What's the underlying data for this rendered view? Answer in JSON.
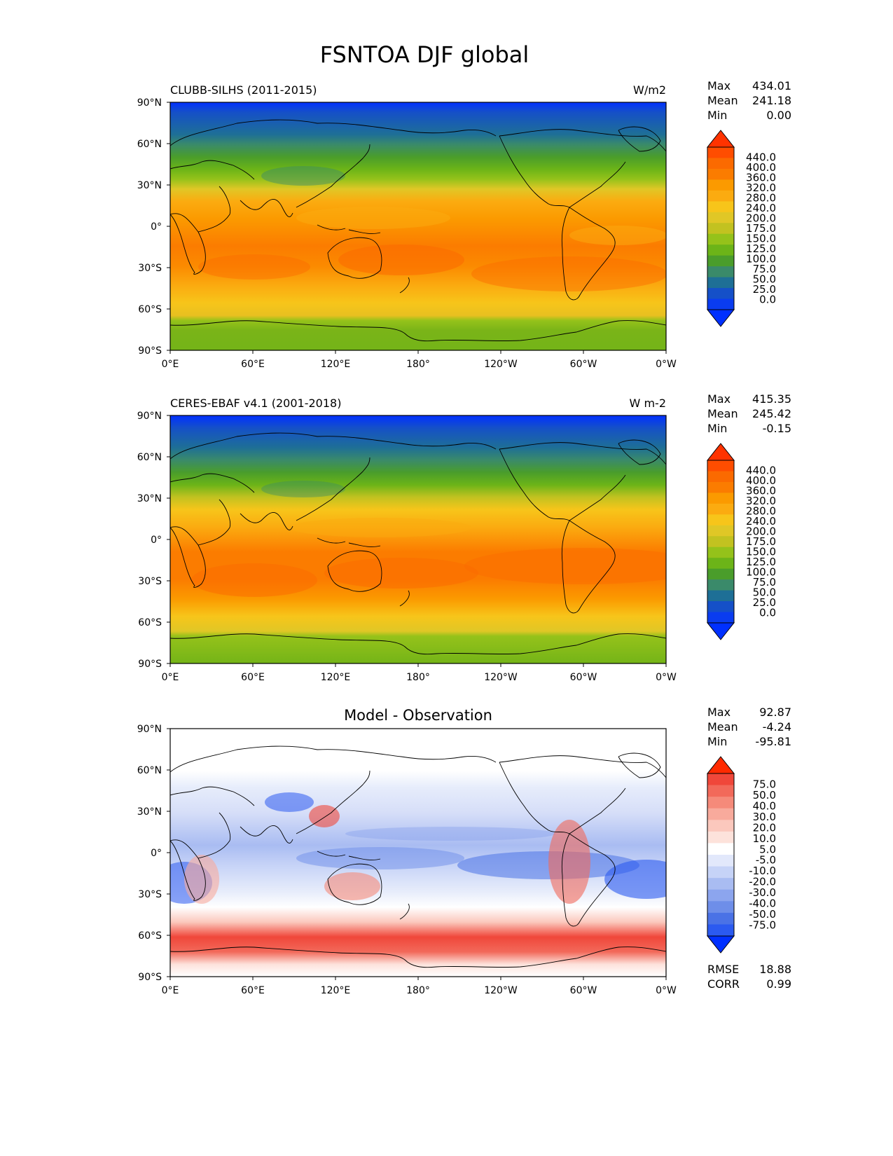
{
  "figure": {
    "title": "FSNTOA DJF global"
  },
  "lat_ticks": [
    "90°N",
    "60°N",
    "30°N",
    "0°",
    "30°S",
    "60°S",
    "90°S"
  ],
  "lon_ticks": [
    "0°E",
    "60°E",
    "120°E",
    "180°",
    "120°W",
    "60°W",
    "0°W"
  ],
  "panels": [
    {
      "title_left": "CLUBB-SILHS (2011-2015)",
      "title_center": "",
      "units": "W/m2",
      "stats": {
        "max_label": "Max",
        "max": "434.01",
        "mean_label": "Mean",
        "mean": "241.18",
        "min_label": "Min",
        "min": "0.00"
      },
      "colorbar": {
        "labels": [
          "440.0",
          "400.0",
          "360.0",
          "320.0",
          "280.0",
          "240.0",
          "200.0",
          "175.0",
          "150.0",
          "125.0",
          "100.0",
          "75.0",
          "50.0",
          "25.0",
          "0.0"
        ],
        "colors": [
          "#ff3300",
          "#ff4d00",
          "#fb6a00",
          "#fb7c00",
          "#fb9a00",
          "#fbab10",
          "#f7c51a",
          "#e0c726",
          "#c2c220",
          "#95c21a",
          "#6cb418",
          "#4a9d2b",
          "#3a8a6a",
          "#1e6f96",
          "#1550c8",
          "#0a3cf0",
          "#0030ff"
        ]
      }
    },
    {
      "title_left": "CERES-EBAF v4.1 (2001-2018)",
      "title_center": "",
      "units": "W m-2",
      "stats": {
        "max_label": "Max",
        "max": "415.35",
        "mean_label": "Mean",
        "mean": "245.42",
        "min_label": "Min",
        "min": "-0.15"
      },
      "colorbar": {
        "labels": [
          "440.0",
          "400.0",
          "360.0",
          "320.0",
          "280.0",
          "240.0",
          "200.0",
          "175.0",
          "150.0",
          "125.0",
          "100.0",
          "75.0",
          "50.0",
          "25.0",
          "0.0"
        ],
        "colors": [
          "#ff3300",
          "#ff4d00",
          "#fb6a00",
          "#fb7c00",
          "#fb9a00",
          "#fbab10",
          "#f7c51a",
          "#e0c726",
          "#c2c220",
          "#95c21a",
          "#6cb418",
          "#4a9d2b",
          "#3a8a6a",
          "#1e6f96",
          "#1550c8",
          "#0a3cf0",
          "#0030ff"
        ]
      }
    },
    {
      "title_left": "",
      "title_center": "Model - Observation",
      "units": "",
      "stats": {
        "max_label": "Max",
        "max": "92.87",
        "mean_label": "Mean",
        "mean": "-4.24",
        "min_label": "Min",
        "min": "-95.81"
      },
      "colorbar": {
        "labels": [
          "75.0",
          "50.0",
          "40.0",
          "30.0",
          "20.0",
          "10.0",
          "5.0",
          "-5.0",
          "-10.0",
          "-20.0",
          "-30.0",
          "-40.0",
          "-50.0",
          "-75.0"
        ],
        "colors": [
          "#ff2a00",
          "#f0473a",
          "#f2695a",
          "#f58a7a",
          "#f8aa9c",
          "#fbc8bd",
          "#fde2db",
          "#ffffff",
          "#e2e8fb",
          "#c6d3f7",
          "#a9bcf2",
          "#8ca5ee",
          "#6e8ee9",
          "#4a72e6",
          "#2b5af0",
          "#0030ff"
        ]
      },
      "metrics": {
        "rmse_label": "RMSE",
        "rmse": "18.88",
        "corr_label": "CORR",
        "corr": "0.99"
      }
    }
  ]
}
